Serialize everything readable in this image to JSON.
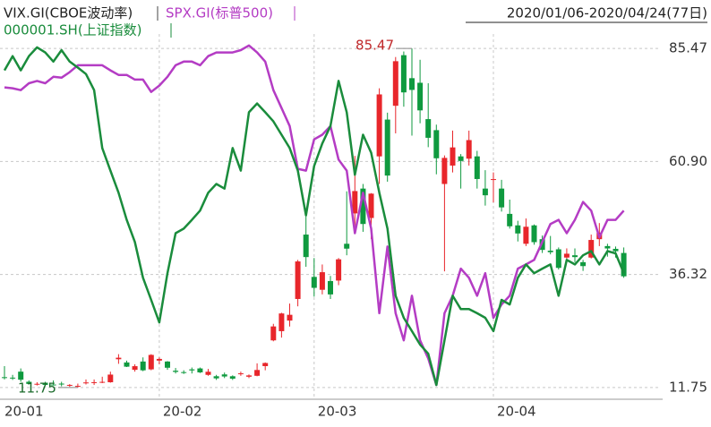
{
  "chart_data": {
    "type": "candlestick",
    "subtitle": "2020/01/06-2020/04/24(77日)",
    "categories": [
      "20-01",
      null,
      null,
      null,
      null,
      null,
      null,
      null,
      null,
      null,
      null,
      null,
      null,
      null,
      null,
      null,
      null,
      null,
      null,
      "20-02",
      null,
      null,
      null,
      null,
      null,
      null,
      null,
      null,
      null,
      null,
      null,
      null,
      null,
      null,
      null,
      null,
      null,
      null,
      "20-03",
      null,
      null,
      null,
      null,
      null,
      null,
      null,
      null,
      null,
      null,
      null,
      null,
      null,
      null,
      null,
      null,
      null,
      null,
      null,
      null,
      null,
      "20-04",
      null,
      null,
      null,
      null,
      null,
      null,
      null,
      null,
      null,
      null,
      null,
      null,
      null,
      null,
      null,
      null
    ],
    "ylim": [
      9.2,
      88.6
    ],
    "yticks": [
      11.75,
      36.32,
      {
        "value": 60.9,
        "label": "60.90"
      },
      85.47
    ],
    "grid": true,
    "up_color": "#e8262b",
    "down_color": "#0f9a3f",
    "series": [
      {
        "name": "VIX.GI(CBOE波动率)",
        "color": "#222222",
        "open": [
          14.0,
          13.9,
          15.2,
          13.0,
          12.5,
          12.8,
          12.4,
          12.6,
          12.3,
          12.1,
          12.7,
          12.9,
          12.9,
          12.9,
          17.9,
          17.2,
          15.6,
          17.4,
          15.7,
          17.6,
          17.4,
          15.4,
          15.1,
          15.7,
          15.9,
          14.5,
          14.2,
          14.6,
          14.2,
          14.8,
          14.1,
          14.3,
          16.4,
          22.0,
          24.0,
          26.3,
          31.0,
          45.0,
          35.8,
          33.0,
          34.9,
          35.0,
          43.0,
          49.6,
          55.0,
          48.6,
          62.0,
          70.0,
          73.0,
          84.0,
          79.0,
          78.0,
          70.1,
          67.7,
          56.0,
          60.0,
          62.0,
          61.5,
          62.0,
          55.0,
          57.0,
          55.0,
          49.5,
          47.0,
          43.0,
          47.0,
          44.0,
          41.5,
          41.8,
          40.0,
          40.5,
          39.0,
          40.0,
          44.0,
          42.5,
          41.9,
          41.0
        ],
        "high": [
          16.4,
          14.5,
          15.9,
          13.3,
          12.9,
          13.0,
          13.3,
          13.0,
          12.5,
          12.6,
          13.5,
          13.5,
          14.1,
          15.2,
          19.0,
          17.6,
          16.8,
          18.3,
          19.0,
          18.3,
          17.5,
          16.0,
          15.5,
          16.1,
          16.1,
          15.8,
          14.5,
          15.0,
          14.4,
          15.2,
          14.6,
          17.0,
          17.2,
          25.6,
          28.0,
          30.0,
          39.5,
          49.5,
          39.9,
          38.5,
          36.0,
          39.9,
          54.4,
          62.1,
          56.0,
          54.0,
          76.8,
          71.5,
          83.6,
          84.8,
          85.47,
          83.0,
          77.9,
          68.9,
          62.2,
          67.6,
          62.5,
          67.6,
          63.2,
          59.0,
          58.5,
          56.9,
          52.6,
          48.0,
          48.5,
          47.2,
          44.8,
          44.7,
          42.2,
          42.0,
          42.0,
          39.5,
          45.0,
          47.5,
          43.0,
          42.4,
          42.2
        ],
        "low": [
          13.5,
          13.4,
          13.0,
          12.4,
          12.2,
          12.1,
          12.2,
          12.0,
          11.9,
          11.75,
          12.4,
          12.3,
          12.7,
          12.8,
          16.9,
          16.2,
          15.2,
          15.3,
          15.5,
          16.8,
          15.6,
          14.8,
          14.7,
          14.8,
          14.9,
          14.3,
          13.4,
          13.8,
          13.4,
          14.3,
          13.8,
          14.2,
          15.5,
          21.8,
          22.6,
          25.0,
          29.4,
          38.0,
          31.5,
          32.0,
          31.0,
          34.0,
          40.5,
          45.5,
          45.6,
          44.0,
          56.0,
          56.5,
          67.0,
          72.8,
          66.5,
          69.2,
          64.0,
          58.1,
          37.0,
          58.5,
          55.0,
          60.0,
          55.0,
          51.3,
          52.0,
          50.0,
          46.3,
          43.5,
          42.5,
          42.8,
          41.0,
          40.7,
          37.4,
          39.5,
          39.0,
          37.1,
          39.8,
          42.5,
          40.2,
          40.0,
          35.6
        ],
        "close": [
          13.85,
          13.79,
          13.45,
          12.54,
          12.56,
          12.32,
          12.39,
          12.42,
          12.32,
          12.1,
          12.85,
          12.91,
          12.98,
          14.56,
          18.23,
          16.28,
          16.39,
          15.49,
          18.84,
          17.97,
          16.05,
          15.15,
          14.96,
          15.47,
          15.04,
          15.18,
          13.74,
          14.15,
          13.68,
          14.83,
          14.38,
          15.56,
          17.08,
          25.03,
          27.85,
          27.56,
          39.16,
          40.11,
          33.42,
          36.82,
          31.99,
          39.62,
          41.94,
          54.46,
          47.3,
          53.9,
          75.47,
          57.83,
          82.69,
          75.91,
          76.45,
          72.0,
          66.04,
          61.59,
          61.67,
          63.95,
          61.0,
          65.54,
          57.08,
          53.54,
          57.06,
          50.91,
          46.8,
          45.24,
          46.7,
          43.35,
          41.67,
          41.17,
          37.76,
          40.84,
          40.11,
          38.15,
          43.83,
          45.41,
          41.98,
          41.38,
          35.93
        ]
      },
      {
        "name": "SPX.GI(标普500)",
        "color": "#b43cc4",
        "values": [
          77.0,
          76.8,
          76.4,
          77.9,
          78.4,
          77.9,
          79.3,
          79.1,
          80.3,
          81.8,
          81.8,
          81.8,
          81.8,
          80.7,
          79.7,
          79.7,
          78.7,
          78.7,
          76.0,
          77.4,
          79.3,
          81.8,
          82.6,
          82.6,
          81.8,
          83.8,
          84.6,
          84.6,
          84.6,
          85.1,
          86.1,
          84.6,
          82.6,
          76.4,
          72.5,
          68.6,
          59.3,
          58.9,
          65.7,
          66.7,
          68.6,
          61.3,
          58.9,
          45.3,
          54.1,
          46.3,
          27.9,
          42.4,
          27.9,
          22.0,
          31.7,
          22.0,
          18.1,
          12.3,
          27.9,
          31.7,
          37.6,
          35.6,
          31.7,
          36.6,
          26.9,
          29.8,
          31.7,
          37.6,
          38.5,
          39.5,
          43.4,
          47.3,
          48.2,
          45.3,
          48.2,
          52.1,
          50.2,
          44.4,
          48.2,
          48.2,
          50.2
        ]
      },
      {
        "name": "000001.SH(上证指数)",
        "color": "#1a8c3c",
        "values": [
          80.7,
          83.8,
          80.7,
          83.8,
          85.7,
          84.6,
          82.6,
          85.1,
          82.6,
          81.3,
          79.9,
          76.4,
          63.8,
          58.9,
          54.1,
          48.2,
          43.4,
          35.6,
          30.8,
          25.9,
          36.6,
          45.3,
          46.3,
          48.2,
          50.2,
          54.1,
          56.0,
          55.0,
          63.8,
          58.9,
          71.6,
          73.5,
          71.6,
          69.6,
          66.7,
          63.8,
          58.9,
          49.2,
          59.9,
          64.8,
          68.6,
          78.4,
          71.6,
          58.0,
          66.7,
          62.8,
          54.1,
          46.3,
          31.7,
          26.9,
          24.0,
          21.1,
          19.1,
          12.3,
          22.0,
          31.7,
          28.8,
          28.8,
          27.9,
          26.9,
          24.0,
          30.8,
          29.8,
          35.6,
          38.5,
          36.6,
          37.6,
          38.5,
          31.7,
          39.5,
          38.5,
          40.5,
          41.4,
          38.5,
          41.4,
          40.9,
          36.6
        ]
      }
    ]
  }
}
